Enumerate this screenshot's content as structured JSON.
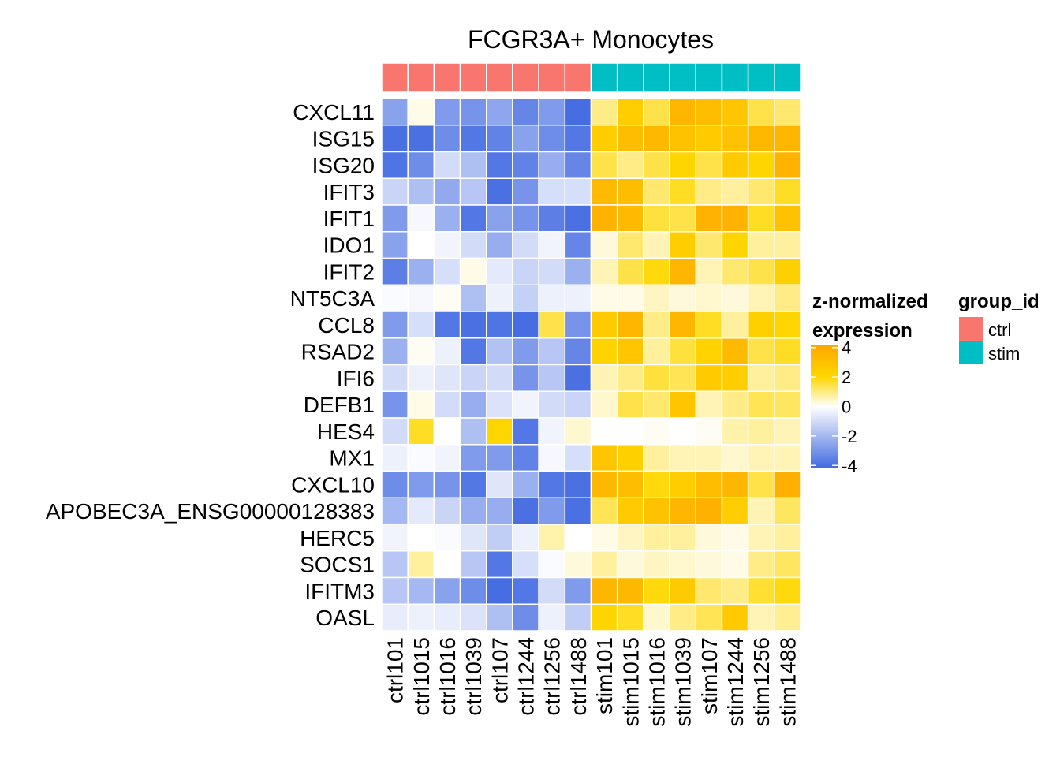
{
  "chart_data": {
    "type": "heatmap",
    "title": "FCGR3A+ Monocytes",
    "columns": [
      "ctrl101",
      "ctrl1015",
      "ctrl1016",
      "ctrl1039",
      "ctrl107",
      "ctrl1244",
      "ctrl1256",
      "ctrl1488",
      "stim101",
      "stim1015",
      "stim1016",
      "stim1039",
      "stim107",
      "stim1244",
      "stim1256",
      "stim1488"
    ],
    "column_groups": [
      "ctrl",
      "ctrl",
      "ctrl",
      "ctrl",
      "ctrl",
      "ctrl",
      "ctrl",
      "ctrl",
      "stim",
      "stim",
      "stim",
      "stim",
      "stim",
      "stim",
      "stim",
      "stim"
    ],
    "rows": [
      "CXCL11",
      "ISG15",
      "ISG20",
      "IFIT3",
      "IFIT1",
      "IDO1",
      "IFIT2",
      "NT5C3A",
      "CCL8",
      "RSAD2",
      "IFI6",
      "DEFB1",
      "HES4",
      "MX1",
      "CXCL10",
      "APOBEC3A_ENSG00000128383",
      "HERC5",
      "SOCS1",
      "IFITM3",
      "OASL"
    ],
    "values": [
      [
        -2.6,
        0.2,
        -2.8,
        -3.0,
        -2.5,
        -3.4,
        -2.8,
        -4.1,
        1.0,
        2.5,
        1.5,
        3.5,
        3.2,
        2.8,
        1.5,
        1.2
      ],
      [
        -4.0,
        -4.0,
        -3.2,
        -3.8,
        -3.5,
        -2.6,
        -3.2,
        -3.8,
        2.5,
        3.2,
        3.4,
        3.0,
        2.6,
        3.0,
        3.4,
        3.5
      ],
      [
        -3.9,
        -3.2,
        -1.0,
        -1.8,
        -3.8,
        -3.5,
        -2.3,
        -3.4,
        1.5,
        1.0,
        1.5,
        2.2,
        1.5,
        2.6,
        2.2,
        3.6
      ],
      [
        -1.2,
        -1.8,
        -2.4,
        -1.6,
        -4.0,
        -3.0,
        -0.9,
        -0.9,
        3.3,
        3.2,
        1.2,
        1.8,
        1.0,
        0.8,
        1.2,
        1.8
      ],
      [
        -2.8,
        -0.2,
        -2.2,
        -3.8,
        -2.6,
        -3.0,
        -3.6,
        -4.0,
        3.6,
        3.3,
        1.6,
        1.5,
        3.6,
        3.6,
        1.8,
        3.0
      ],
      [
        -2.6,
        0.0,
        -0.3,
        -1.0,
        -2.3,
        -1.0,
        -0.3,
        -3.4,
        0.3,
        1.2,
        0.6,
        2.5,
        1.2,
        2.2,
        0.8,
        0.8
      ],
      [
        -3.6,
        -2.2,
        -0.9,
        0.2,
        -0.6,
        -1.2,
        -1.0,
        -2.2,
        0.6,
        1.5,
        2.0,
        3.5,
        0.6,
        1.2,
        1.5,
        2.4
      ],
      [
        -0.1,
        -0.2,
        0.1,
        -1.8,
        -0.4,
        -1.3,
        -0.4,
        -0.4,
        0.2,
        0.2,
        0.5,
        0.3,
        0.4,
        0.3,
        0.6,
        1.0
      ],
      [
        -2.8,
        -0.9,
        -3.8,
        -4.0,
        -3.9,
        -4.1,
        1.5,
        -3.0,
        2.6,
        3.5,
        1.0,
        3.5,
        1.8,
        0.8,
        2.4,
        2.2
      ],
      [
        -2.2,
        0.1,
        -0.4,
        -3.8,
        -1.7,
        -2.8,
        -1.6,
        -3.4,
        2.3,
        2.8,
        0.8,
        1.6,
        2.3,
        3.3,
        1.5,
        1.8
      ],
      [
        -1.0,
        -0.4,
        -0.7,
        -1.2,
        -1.0,
        -3.0,
        -1.6,
        -4.0,
        0.6,
        1.0,
        1.6,
        1.4,
        2.6,
        2.5,
        0.8,
        1.0
      ],
      [
        -3.0,
        0.2,
        -1.0,
        -2.3,
        -0.8,
        -0.3,
        -1.0,
        -1.2,
        0.4,
        1.5,
        1.2,
        2.8,
        0.6,
        1.0,
        1.4,
        1.3
      ],
      [
        -1.0,
        1.8,
        0.0,
        -1.8,
        2.2,
        -3.8,
        -0.3,
        0.4,
        0.0,
        0.0,
        0.1,
        0.0,
        0.1,
        0.7,
        0.8,
        0.6
      ],
      [
        -0.4,
        -0.1,
        -0.3,
        -2.8,
        -2.8,
        -3.5,
        -0.2,
        -0.9,
        2.8,
        2.4,
        0.8,
        0.6,
        0.6,
        0.4,
        0.6,
        0.6
      ],
      [
        -3.2,
        -2.8,
        -3.0,
        -3.8,
        -0.7,
        -2.2,
        -3.8,
        -4.0,
        3.4,
        3.2,
        2.0,
        2.5,
        3.2,
        3.5,
        1.5,
        3.8
      ],
      [
        -2.0,
        -0.6,
        -1.2,
        -2.3,
        -2.3,
        -4.0,
        -2.8,
        -4.0,
        1.4,
        2.6,
        3.0,
        3.5,
        3.7,
        2.5,
        0.6,
        1.3
      ],
      [
        -0.3,
        0.0,
        -0.1,
        -0.7,
        -1.4,
        -0.4,
        0.7,
        0.0,
        0.2,
        0.5,
        0.8,
        0.8,
        0.3,
        0.2,
        0.6,
        0.8
      ],
      [
        -1.6,
        0.8,
        0.0,
        -1.6,
        -3.8,
        -0.9,
        -0.1,
        0.3,
        0.8,
        0.3,
        0.5,
        0.4,
        0.3,
        0.2,
        1.0,
        1.3
      ],
      [
        -1.6,
        -2.0,
        -2.6,
        -3.2,
        -4.1,
        -3.8,
        -1.0,
        -2.8,
        3.5,
        3.4,
        2.0,
        2.6,
        1.2,
        1.0,
        1.7,
        2.0
      ],
      [
        -0.5,
        -0.4,
        -0.5,
        -0.8,
        -1.8,
        -3.2,
        -0.4,
        -1.4,
        2.2,
        1.8,
        0.4,
        1.0,
        1.4,
        2.6,
        0.6,
        0.9
      ]
    ],
    "color_legend": {
      "title_lines": [
        "z-normalized",
        "expression"
      ],
      "ticks": [
        4,
        2,
        0,
        -2,
        -4
      ],
      "range": [
        -4.2,
        4.2
      ],
      "low_color": "#4169E1",
      "mid_color": "#FFFFFF",
      "mid2_color": "#FFD700",
      "high_color": "#FFA500"
    },
    "group_legend": {
      "title": "group_id",
      "entries": [
        {
          "label": "ctrl",
          "color": "#F8766D"
        },
        {
          "label": "stim",
          "color": "#00BFC4"
        }
      ]
    }
  }
}
